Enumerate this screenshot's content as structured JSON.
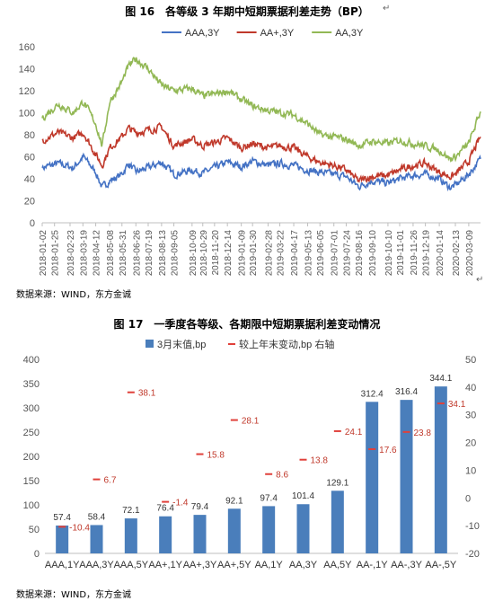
{
  "figure16": {
    "title": "图 16　各等级 3 年期中短期票据利差走势（BP）"
  },
  "figure17": {
    "title": "图 17　一季度各等级、各期限中短期票据利差变动情况"
  },
  "source_text": "数据来源：WIND，东方金诚",
  "chart_data": [
    {
      "type": "line",
      "title": "图 16　各等级 3 年期中短期票据利差走势（BP）",
      "xlabel": "",
      "ylabel": "",
      "ylim": [
        0,
        160
      ],
      "yticks": [
        0,
        20,
        40,
        60,
        80,
        100,
        120,
        140,
        160
      ],
      "xlim": [
        "2018-01-02",
        "2020-03-31"
      ],
      "x_ticks": [
        "2018-01-02",
        "2018-01-25",
        "2018-02-23",
        "2018-03-19",
        "2018-04-12",
        "2018-05-08",
        "2018-05-31",
        "2018-06-26",
        "2018-07-19",
        "2018-08-13",
        "2018-09-05",
        "2018-10-09",
        "2018-10-29",
        "2018-11-20",
        "2018-12-14",
        "2019-01-09",
        "2019-01-30",
        "2019-02-28",
        "2019-03-22",
        "2019-04-17",
        "2019-05-13",
        "2019-06-05",
        "2019-07-01",
        "2019-07-24",
        "2019-08-16",
        "2019-09-10",
        "2019-10-10",
        "2019-11-01",
        "2019-11-26",
        "2019-12-19",
        "2020-01-14",
        "2020-02-13",
        "2020-03-09"
      ],
      "legend_position": "top",
      "grid": false,
      "series": [
        {
          "name": "AAA,3Y",
          "color": "#4472c4",
          "points": [
            [
              "2018-01-02",
              50
            ],
            [
              "2018-02-01",
              54
            ],
            [
              "2018-03-01",
              50
            ],
            [
              "2018-03-20",
              60
            ],
            [
              "2018-04-12",
              46
            ],
            [
              "2018-04-24",
              32
            ],
            [
              "2018-05-08",
              38
            ],
            [
              "2018-05-31",
              44
            ],
            [
              "2018-06-12",
              54
            ],
            [
              "2018-06-26",
              46
            ],
            [
              "2018-07-19",
              50
            ],
            [
              "2018-08-13",
              55
            ],
            [
              "2018-09-05",
              44
            ],
            [
              "2018-10-09",
              48
            ],
            [
              "2018-10-29",
              45
            ],
            [
              "2018-11-20",
              50
            ],
            [
              "2018-12-14",
              55
            ],
            [
              "2019-01-09",
              51
            ],
            [
              "2019-01-30",
              56
            ],
            [
              "2019-02-28",
              52
            ],
            [
              "2019-03-22",
              54
            ],
            [
              "2019-04-17",
              52
            ],
            [
              "2019-05-13",
              48
            ],
            [
              "2019-06-05",
              46
            ],
            [
              "2019-07-01",
              44
            ],
            [
              "2019-07-24",
              42
            ],
            [
              "2019-08-16",
              33
            ],
            [
              "2019-09-10",
              38
            ],
            [
              "2019-10-10",
              36
            ],
            [
              "2019-11-01",
              40
            ],
            [
              "2019-11-26",
              43
            ],
            [
              "2019-12-19",
              44
            ],
            [
              "2020-01-14",
              40
            ],
            [
              "2020-02-03",
              32
            ],
            [
              "2020-02-13",
              34
            ],
            [
              "2020-03-09",
              44
            ],
            [
              "2020-03-31",
              58
            ]
          ]
        },
        {
          "name": "AA+,3Y",
          "color": "#c0392b",
          "points": [
            [
              "2018-01-02",
              75
            ],
            [
              "2018-02-01",
              82
            ],
            [
              "2018-03-01",
              77
            ],
            [
              "2018-03-20",
              82
            ],
            [
              "2018-04-12",
              62
            ],
            [
              "2018-04-24",
              52
            ],
            [
              "2018-05-08",
              68
            ],
            [
              "2018-05-31",
              78
            ],
            [
              "2018-06-12",
              86
            ],
            [
              "2018-06-26",
              82
            ],
            [
              "2018-07-19",
              84
            ],
            [
              "2018-08-13",
              87
            ],
            [
              "2018-09-05",
              70
            ],
            [
              "2018-10-09",
              76
            ],
            [
              "2018-10-29",
              70
            ],
            [
              "2018-11-20",
              73
            ],
            [
              "2018-12-14",
              77
            ],
            [
              "2019-01-09",
              68
            ],
            [
              "2019-01-30",
              72
            ],
            [
              "2019-02-28",
              68
            ],
            [
              "2019-03-22",
              70
            ],
            [
              "2019-04-17",
              68
            ],
            [
              "2019-05-13",
              60
            ],
            [
              "2019-06-05",
              55
            ],
            [
              "2019-07-01",
              52
            ],
            [
              "2019-07-24",
              48
            ],
            [
              "2019-08-16",
              38
            ],
            [
              "2019-09-10",
              42
            ],
            [
              "2019-10-10",
              43
            ],
            [
              "2019-11-01",
              48
            ],
            [
              "2019-11-26",
              52
            ],
            [
              "2019-12-19",
              54
            ],
            [
              "2020-01-14",
              46
            ],
            [
              "2020-02-03",
              42
            ],
            [
              "2020-02-13",
              44
            ],
            [
              "2020-03-09",
              56
            ],
            [
              "2020-03-31",
              78
            ]
          ]
        },
        {
          "name": "AA,3Y",
          "color": "#92b855",
          "points": [
            [
              "2018-01-02",
              95
            ],
            [
              "2018-02-01",
              108
            ],
            [
              "2018-03-01",
              100
            ],
            [
              "2018-03-20",
              110
            ],
            [
              "2018-04-12",
              90
            ],
            [
              "2018-04-24",
              70
            ],
            [
              "2018-05-08",
              110
            ],
            [
              "2018-05-31",
              128
            ],
            [
              "2018-06-12",
              142
            ],
            [
              "2018-06-26",
              149
            ],
            [
              "2018-07-19",
              140
            ],
            [
              "2018-08-13",
              125
            ],
            [
              "2018-09-05",
              120
            ],
            [
              "2018-10-09",
              122
            ],
            [
              "2018-10-29",
              115
            ],
            [
              "2018-11-20",
              117
            ],
            [
              "2018-12-14",
              120
            ],
            [
              "2019-01-09",
              112
            ],
            [
              "2019-01-30",
              106
            ],
            [
              "2019-02-28",
              102
            ],
            [
              "2019-03-22",
              100
            ],
            [
              "2019-04-17",
              98
            ],
            [
              "2019-05-13",
              90
            ],
            [
              "2019-06-05",
              80
            ],
            [
              "2019-07-01",
              78
            ],
            [
              "2019-07-24",
              76
            ],
            [
              "2019-08-16",
              70
            ],
            [
              "2019-09-10",
              74
            ],
            [
              "2019-10-10",
              72
            ],
            [
              "2019-11-01",
              75
            ],
            [
              "2019-11-26",
              72
            ],
            [
              "2019-12-19",
              70
            ],
            [
              "2020-01-14",
              66
            ],
            [
              "2020-02-03",
              58
            ],
            [
              "2020-02-13",
              60
            ],
            [
              "2020-03-09",
              72
            ],
            [
              "2020-03-31",
              101
            ]
          ]
        }
      ]
    },
    {
      "type": "bar",
      "title": "图 17　一季度各等级、各期限中短期票据利差变动情况",
      "categories": [
        "AAA,1Y",
        "AAA,3Y",
        "AAA,5Y",
        "AA+,1Y",
        "AA+,3Y",
        "AA+,5Y",
        "AA,1Y",
        "AA,3Y",
        "AA,5Y",
        "AA-,1Y",
        "AA-,3Y",
        "AA-,5Y"
      ],
      "legend_position": "top",
      "grid": false,
      "ylim": [
        0,
        400
      ],
      "yticks": [
        0,
        50,
        100,
        150,
        200,
        250,
        300,
        350,
        400
      ],
      "y2lim": [
        -20,
        50
      ],
      "y2ticks": [
        -20,
        -10,
        0,
        10,
        20,
        30,
        40,
        50
      ],
      "series": [
        {
          "name": "3月末值,bp",
          "axis": "left",
          "color": "#4a7ebb",
          "values": [
            57.4,
            58.4,
            72.1,
            76.4,
            79.4,
            92.1,
            97.4,
            101.4,
            129.1,
            312.4,
            316.4,
            344.1
          ]
        },
        {
          "name": "较上年末变动,bp 右轴",
          "axis": "right",
          "color": "#e0403a",
          "values": [
            -10.4,
            6.7,
            38.1,
            -1.4,
            15.8,
            28.1,
            8.6,
            13.8,
            24.1,
            17.6,
            23.8,
            34.1
          ]
        }
      ],
      "labels": {
        "values": [
          "57.4",
          "58.4",
          "72.1",
          "76.4",
          "79.4",
          "92.1",
          "97.4",
          "101.4",
          "129.1",
          "312.4",
          "316.4",
          "344.1"
        ],
        "changes": [
          "-10.4",
          "6.7",
          "38.1",
          "-1.4",
          "15.8",
          "28.1",
          "8.6",
          "13.8",
          "24.1",
          "17.6",
          "23.8",
          "34.1"
        ]
      }
    }
  ]
}
